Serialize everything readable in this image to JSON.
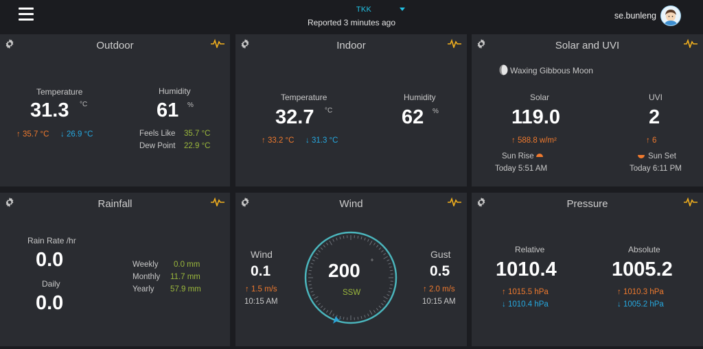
{
  "header": {
    "station": "TKK",
    "reported": "Reported 3 minutes ago",
    "user": "se.bunleng"
  },
  "colors": {
    "background": "#1b1c20",
    "panel": "#2a2c31",
    "high": "#f07a2e",
    "low": "#26a9e0",
    "accent_green": "#9cb93c",
    "station": "#22c3e6",
    "pulse_icon": "#f2b01e"
  },
  "outdoor": {
    "title": "Outdoor",
    "temperature_label": "Temperature",
    "temperature": "31.3",
    "temperature_unit": "°C",
    "temp_high": "35.7 °C",
    "temp_low": "26.9 °C",
    "humidity_label": "Humidity",
    "humidity": "61",
    "humidity_unit": "%",
    "feels_like_label": "Feels Like",
    "feels_like": "35.7 °C",
    "dew_point_label": "Dew Point",
    "dew_point": "22.9 °C"
  },
  "indoor": {
    "title": "Indoor",
    "temperature_label": "Temperature",
    "temperature": "32.7",
    "temperature_unit": "°C",
    "temp_high": "33.2 °C",
    "temp_low": "31.3 °C",
    "humidity_label": "Humidity",
    "humidity": "62",
    "humidity_unit": "%"
  },
  "solar": {
    "title": "Solar and UVI",
    "moon_phase": "Waxing Gibbous Moon",
    "solar_label": "Solar",
    "solar": "119.0",
    "solar_high": "588.8 w/m²",
    "uvi_label": "UVI",
    "uvi": "2",
    "uvi_high": "6",
    "sunrise_label": "Sun Rise",
    "sunrise_time": "Today 5:51 AM",
    "sunset_label": "Sun Set",
    "sunset_time": "Today 6:11 PM"
  },
  "rainfall": {
    "title": "Rainfall",
    "rate_label": "Rain Rate /hr",
    "rate": "0.0",
    "daily_label": "Daily",
    "daily": "0.0",
    "weekly_label": "Weekly",
    "weekly": "0.0 mm",
    "monthly_label": "Monthly",
    "monthly": "11.7 mm",
    "yearly_label": "Yearly",
    "yearly": "57.9 mm"
  },
  "wind": {
    "title": "Wind",
    "wind_label": "Wind",
    "wind": "0.1",
    "wind_high": "1.5 m/s",
    "wind_time": "10:15 AM",
    "direction": "200",
    "direction_unit": "°",
    "direction_name": "SSW",
    "gust_label": "Gust",
    "gust": "0.5",
    "gust_high": "2.0 m/s",
    "gust_time": "10:15 AM"
  },
  "pressure": {
    "title": "Pressure",
    "relative_label": "Relative",
    "relative": "1010.4",
    "relative_high": "1015.5 hPa",
    "relative_low": "1010.4 hPa",
    "absolute_label": "Absolute",
    "absolute": "1005.2",
    "absolute_high": "1010.3 hPa",
    "absolute_low": "1005.2 hPa"
  }
}
